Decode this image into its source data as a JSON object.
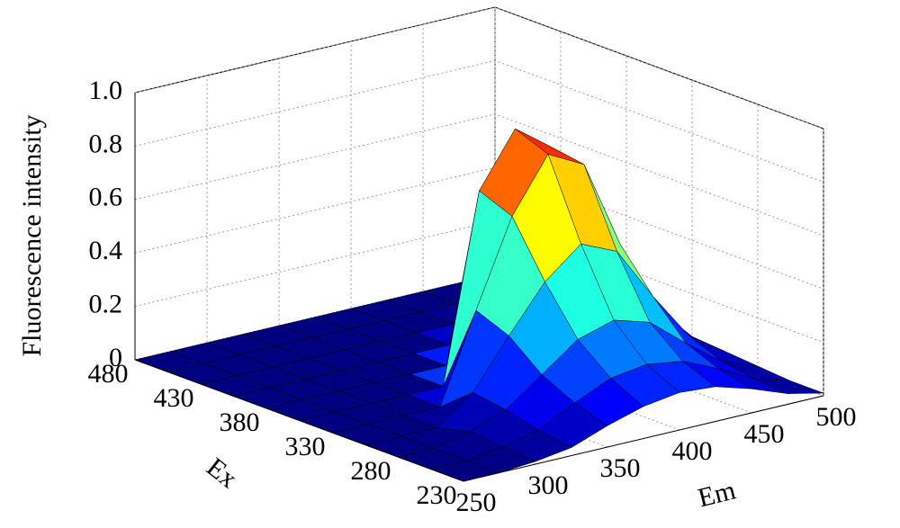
{
  "chart_data": {
    "type": "surface3d",
    "zlabel": "Fluorescence intensity",
    "xlabel": "Em",
    "ylabel": "Ex",
    "colormap": "jet",
    "grid": true,
    "x": [
      250,
      275,
      300,
      325,
      350,
      375,
      400,
      425,
      450,
      475,
      500
    ],
    "y": [
      230,
      255,
      280,
      305,
      330,
      355,
      380,
      405,
      430,
      455,
      480
    ],
    "z": [
      [
        0,
        0,
        0.01,
        0.03,
        0.08,
        0.12,
        0.14,
        0.13,
        0.09,
        0.04,
        0.01
      ],
      [
        0,
        0,
        0.02,
        0.05,
        0.12,
        0.18,
        0.2,
        0.18,
        0.12,
        0.05,
        0.01
      ],
      [
        0,
        0,
        0.03,
        0.08,
        0.18,
        0.28,
        0.32,
        0.28,
        0.17,
        0.07,
        0.02
      ],
      [
        0,
        0,
        0,
        0.1,
        0.28,
        0.45,
        0.56,
        0.5,
        0.3,
        0.12,
        0.03
      ],
      [
        0,
        0,
        0,
        0,
        0.33,
        0.65,
        0.85,
        0.78,
        0.45,
        0.18,
        0.04
      ],
      [
        0,
        0,
        0,
        0,
        0,
        0.7,
        0.9,
        0.8,
        0.46,
        0.18,
        0.04
      ],
      [
        0,
        0,
        0,
        0,
        0,
        0,
        0.6,
        0.55,
        0.32,
        0.12,
        0.03
      ],
      [
        0,
        0,
        0,
        0,
        0,
        0,
        0,
        0.29,
        0.17,
        0.06,
        0.01
      ],
      [
        0,
        0,
        0,
        0,
        0,
        0,
        0,
        0,
        0.06,
        0.02,
        0.01
      ],
      [
        0,
        0,
        0,
        0,
        0,
        0,
        0,
        0,
        0,
        0.01,
        0
      ],
      [
        0,
        0,
        0,
        0,
        0,
        0,
        0,
        0,
        0,
        0,
        0
      ]
    ],
    "xlim": [
      250,
      500
    ],
    "ylim": [
      230,
      480
    ],
    "zlim": [
      0,
      1
    ],
    "xticks": [
      250,
      300,
      350,
      400,
      450,
      500
    ],
    "yticks": [
      230,
      280,
      330,
      380,
      430,
      480
    ],
    "zticks": [
      0,
      0.2,
      0.4,
      0.6,
      0.8,
      {
        "value": 1,
        "label": "1.0"
      }
    ]
  }
}
